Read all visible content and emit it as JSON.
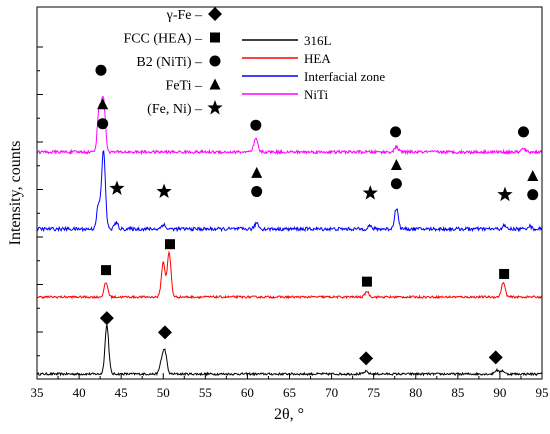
{
  "chart_data": {
    "type": "line",
    "xlabel": "2θ, °",
    "ylabel": "Intensity, counts",
    "xlim": [
      35,
      95
    ],
    "x_ticks": [
      "35",
      "40",
      "45",
      "50",
      "55",
      "60",
      "65",
      "70",
      "75",
      "80",
      "85",
      "90",
      "95"
    ],
    "y_tick_labels": "none",
    "grid": false,
    "series": [
      {
        "name": "316L",
        "color": "#000000",
        "peaks": [
          [
            43.3,
            1.0
          ],
          [
            50.2,
            0.45
          ],
          [
            49.8,
            0.25
          ],
          [
            74.1,
            0.05
          ],
          [
            89.6,
            0.08
          ],
          [
            90.3,
            0.07
          ]
        ]
      },
      {
        "name": "HEA",
        "color": "#ff0000",
        "peaks": [
          [
            43.2,
            0.3
          ],
          [
            50.0,
            0.72
          ],
          [
            50.7,
            0.92
          ],
          [
            74.2,
            0.12
          ],
          [
            90.4,
            0.3
          ]
        ]
      },
      {
        "name": "Interfacial zone",
        "color": "#0000ff",
        "peaks": [
          [
            42.9,
            1.0
          ],
          [
            42.3,
            0.3
          ],
          [
            44.4,
            0.08
          ],
          [
            50.0,
            0.06
          ],
          [
            61.1,
            0.08
          ],
          [
            74.5,
            0.04
          ],
          [
            77.7,
            0.27
          ],
          [
            90.5,
            0.04
          ],
          [
            93.5,
            0.04
          ]
        ]
      },
      {
        "name": "NiTi",
        "color": "#ff00ff",
        "peaks": [
          [
            42.4,
            0.65
          ],
          [
            42.9,
            0.78
          ],
          [
            61.0,
            0.2
          ],
          [
            77.7,
            0.08
          ],
          [
            92.8,
            0.05
          ]
        ]
      }
    ],
    "phase_legend": [
      {
        "label": "γ-Fe –",
        "marker": "diamond"
      },
      {
        "label": "FCC (HEA) –",
        "marker": "square"
      },
      {
        "label": "B2 (NiTi) –",
        "marker": "circle"
      },
      {
        "label": "FeTi –",
        "marker": "triangle"
      },
      {
        "label": "(Fe, Ni) –",
        "marker": "star"
      }
    ],
    "peak_markers": [
      {
        "marker": "diamond",
        "x": 43.3,
        "series": "316L",
        "level": 1.14
      },
      {
        "marker": "diamond",
        "x": 50.2,
        "series": "316L",
        "level": 0.85
      },
      {
        "marker": "diamond",
        "x": 74.1,
        "series": "316L",
        "level": 0.32
      },
      {
        "marker": "diamond",
        "x": 89.5,
        "series": "316L",
        "level": 0.34
      },
      {
        "marker": "square",
        "x": 43.2,
        "series": "HEA",
        "level": 0.56
      },
      {
        "marker": "square",
        "x": 50.8,
        "series": "HEA",
        "level": 1.1
      },
      {
        "marker": "square",
        "x": 74.2,
        "series": "HEA",
        "level": 0.32
      },
      {
        "marker": "square",
        "x": 90.5,
        "series": "HEA",
        "level": 0.48
      },
      {
        "marker": "circle",
        "x": 42.8,
        "series": "Interfacial zone",
        "level": 1.35
      },
      {
        "marker": "triangle",
        "x": 42.8,
        "series": "Interfacial zone",
        "level": 1.6
      },
      {
        "marker": "star",
        "x": 44.5,
        "series": "Interfacial zone",
        "level": 0.52
      },
      {
        "marker": "star",
        "x": 50.1,
        "series": "Interfacial zone",
        "level": 0.48
      },
      {
        "marker": "circle",
        "x": 61.1,
        "series": "Interfacial zone",
        "level": 0.48
      },
      {
        "marker": "triangle",
        "x": 61.1,
        "series": "Interfacial zone",
        "level": 0.72
      },
      {
        "marker": "star",
        "x": 74.6,
        "series": "Interfacial zone",
        "level": 0.46
      },
      {
        "marker": "circle",
        "x": 77.7,
        "series": "Interfacial zone",
        "level": 0.58
      },
      {
        "marker": "triangle",
        "x": 77.7,
        "series": "Interfacial zone",
        "level": 0.82
      },
      {
        "marker": "star",
        "x": 90.6,
        "series": "Interfacial zone",
        "level": 0.44
      },
      {
        "marker": "circle",
        "x": 93.9,
        "series": "Interfacial zone",
        "level": 0.44
      },
      {
        "marker": "triangle",
        "x": 93.9,
        "series": "Interfacial zone",
        "level": 0.68
      },
      {
        "marker": "circle",
        "x": 42.6,
        "series": "NiTi",
        "level": 1.22
      },
      {
        "marker": "circle",
        "x": 61.0,
        "series": "NiTi",
        "level": 0.4
      },
      {
        "marker": "circle",
        "x": 77.6,
        "series": "NiTi",
        "level": 0.3
      },
      {
        "marker": "circle",
        "x": 92.8,
        "series": "NiTi",
        "level": 0.3
      }
    ]
  }
}
